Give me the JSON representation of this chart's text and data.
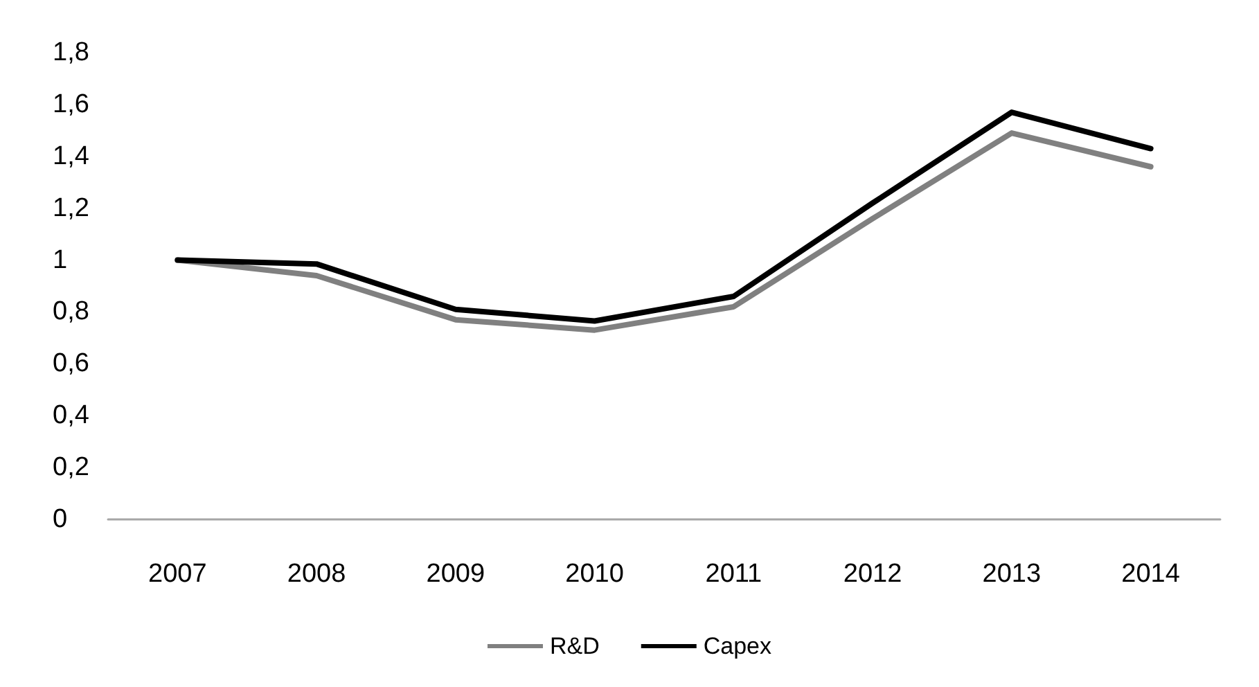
{
  "chart_data": {
    "type": "line",
    "categories": [
      "2007",
      "2008",
      "2009",
      "2010",
      "2011",
      "2012",
      "2013",
      "2014"
    ],
    "series": [
      {
        "name": "R&D",
        "color": "#808080",
        "values": [
          1.0,
          0.94,
          0.77,
          0.73,
          0.82,
          1.16,
          1.49,
          1.36
        ]
      },
      {
        "name": "Capex",
        "color": "#000000",
        "values": [
          1.0,
          0.985,
          0.81,
          0.765,
          0.86,
          1.22,
          1.57,
          1.43
        ]
      }
    ],
    "ylim": [
      0,
      1.8
    ],
    "yticks": [
      0,
      {
        "value": 0.2,
        "label": "0,2"
      },
      {
        "value": 0.4,
        "label": "0,4"
      },
      {
        "value": 0.6,
        "label": "0,6"
      },
      {
        "value": 0.8,
        "label": "0,8"
      },
      1,
      {
        "value": 1.2,
        "label": "1,2"
      },
      {
        "value": 1.4,
        "label": "1,4"
      },
      {
        "value": 1.6,
        "label": "1,6"
      },
      {
        "value": 1.8,
        "label": "1,8"
      }
    ],
    "grid": false,
    "legend": "bottom",
    "marker": "none",
    "line_style": "solid"
  }
}
